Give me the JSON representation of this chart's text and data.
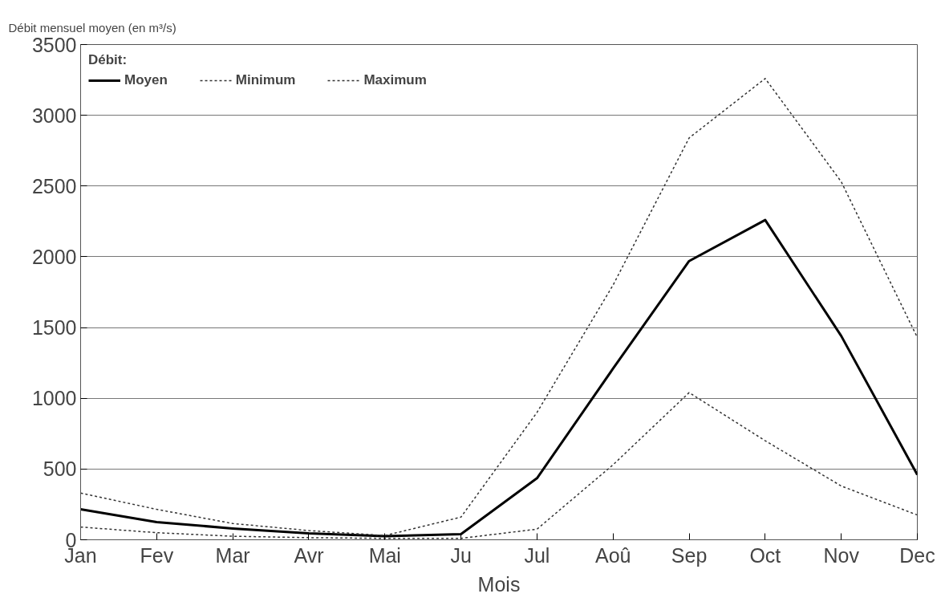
{
  "chart_data": {
    "type": "line",
    "title": "Débit mensuel moyen (en m³/s)",
    "xlabel": "Mois",
    "legend_title": "Débit:",
    "legend": "top left",
    "categories": [
      "Jan",
      "Fev",
      "Mar",
      "Avr",
      "Mai",
      "Ju",
      "Jul",
      "Aoû",
      "Sep",
      "Oct",
      "Nov",
      "Dec"
    ],
    "series": [
      {
        "name": "Moyen",
        "color": "#000000",
        "line_style": "solid",
        "values": [
          215,
          125,
          80,
          45,
          25,
          40,
          435,
          1210,
          1970,
          2260,
          1440,
          460
        ]
      },
      {
        "name": "Minimum",
        "color": "#333333",
        "line_style": "dotted",
        "values": [
          90,
          50,
          25,
          15,
          10,
          10,
          75,
          530,
          1040,
          700,
          380,
          175
        ]
      },
      {
        "name": "Maximum",
        "color": "#333333",
        "line_style": "dotted",
        "values": [
          330,
          215,
          115,
          65,
          30,
          160,
          900,
          1800,
          2840,
          3260,
          2530,
          1430
        ]
      }
    ],
    "ylim": [
      0,
      3500
    ],
    "yticks": [
      0,
      500,
      1000,
      1500,
      2000,
      2500,
      3000,
      3500
    ],
    "grid": "y",
    "marker": "none"
  }
}
